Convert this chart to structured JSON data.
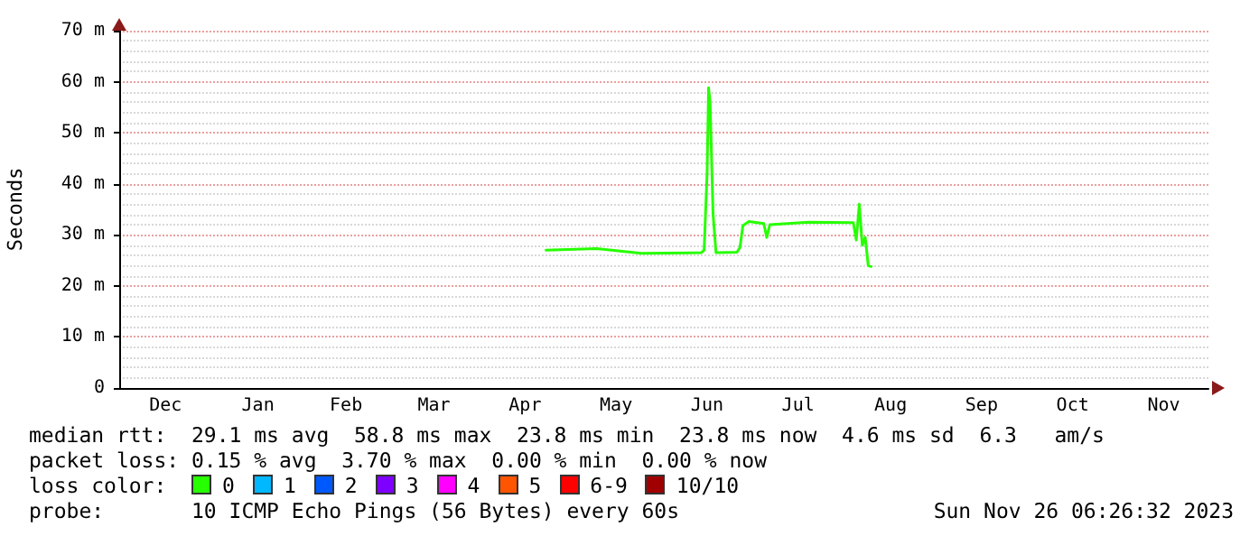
{
  "chart_data": {
    "type": "line",
    "ylabel": "Seconds",
    "legend_title": "loss color:",
    "legend": "bottom",
    "grid": "y",
    "marker": "none",
    "line_style": "solid",
    "xlim": [
      "2022-12-01",
      "2023-12-01"
    ],
    "xticks": [
      {
        "value": "2022-12-16T12:00",
        "label": "Dec"
      },
      {
        "value": "2023-01-16T12:00",
        "label": "Jan"
      },
      {
        "value": "2023-02-15",
        "label": "Feb"
      },
      {
        "value": "2023-03-16T12:00",
        "label": "Mar"
      },
      {
        "value": "2023-04-16",
        "label": "Apr"
      },
      {
        "value": "2023-05-16T12:00",
        "label": "May"
      },
      {
        "value": "2023-06-16",
        "label": "Jun"
      },
      {
        "value": "2023-07-16T12:00",
        "label": "Jul"
      },
      {
        "value": "2023-08-16T12:00",
        "label": "Aug"
      },
      {
        "value": "2023-09-16",
        "label": "Sep"
      },
      {
        "value": "2023-10-16T12:00",
        "label": "Oct"
      },
      {
        "value": "2023-11-16",
        "label": "Nov"
      }
    ],
    "ylim": [
      0,
      70
    ],
    "yticks": [
      0,
      {
        "value": 10,
        "label": "10 m"
      },
      {
        "value": 20,
        "label": "20 m"
      },
      {
        "value": 30,
        "label": "30 m"
      },
      {
        "value": 40,
        "label": "40 m"
      },
      {
        "value": 50,
        "label": "50 m"
      },
      {
        "value": 60,
        "label": "60 m"
      },
      {
        "value": 70,
        "label": "70 m"
      }
    ],
    "x": [
      "2023-04-23",
      "2023-05-10",
      "2023-05-25",
      "2023-06-14",
      "2023-06-15",
      "2023-06-16",
      "2023-06-16T12:00",
      "2023-06-17",
      "2023-06-18",
      "2023-06-19",
      "2023-06-26",
      "2023-06-27",
      "2023-06-28",
      "2023-06-30",
      "2023-07-05",
      "2023-07-06",
      "2023-07-07",
      "2023-07-20",
      "2023-08-04",
      "2023-08-05",
      "2023-08-06",
      "2023-08-07",
      "2023-08-08",
      "2023-08-09",
      "2023-08-10"
    ],
    "series": [
      {
        "name": "0",
        "color": "#26ff00",
        "values": [
          27.0,
          27.3,
          26.4,
          26.5,
          27.0,
          42,
          58.8,
          56,
          34,
          26.5,
          26.6,
          27.5,
          31.8,
          32.6,
          32.2,
          29.5,
          32.0,
          32.5,
          32.4,
          29,
          36,
          28,
          29.5,
          24,
          23.8
        ]
      },
      {
        "name": "1",
        "color": "#00b8ff",
        "values": [
          null,
          null,
          null,
          null,
          null,
          null,
          null,
          null,
          null,
          null,
          null,
          null,
          null,
          null,
          null,
          null,
          null,
          null,
          null,
          null,
          null,
          null,
          null,
          null,
          null
        ]
      },
      {
        "name": "2",
        "color": "#0059ff",
        "values": [
          null,
          null,
          null,
          null,
          null,
          null,
          null,
          null,
          null,
          null,
          null,
          null,
          null,
          null,
          null,
          null,
          null,
          null,
          null,
          null,
          null,
          null,
          null,
          null,
          null
        ]
      },
      {
        "name": "3",
        "color": "#7e00ff",
        "values": [
          null,
          null,
          null,
          null,
          null,
          null,
          null,
          null,
          null,
          null,
          null,
          null,
          null,
          null,
          null,
          null,
          null,
          null,
          null,
          null,
          null,
          null,
          null,
          null,
          null
        ]
      },
      {
        "name": "4",
        "color": "#ff00ff",
        "values": [
          null,
          null,
          null,
          null,
          null,
          null,
          null,
          null,
          null,
          null,
          null,
          null,
          null,
          null,
          null,
          null,
          null,
          null,
          null,
          null,
          null,
          null,
          null,
          null,
          null
        ]
      },
      {
        "name": "5",
        "color": "#ff5500",
        "values": [
          null,
          null,
          null,
          null,
          null,
          null,
          null,
          null,
          null,
          null,
          null,
          null,
          null,
          null,
          null,
          null,
          null,
          null,
          null,
          null,
          null,
          null,
          null,
          null,
          null
        ]
      },
      {
        "name": "6-9",
        "color": "#ff0000",
        "values": [
          null,
          null,
          null,
          null,
          null,
          null,
          null,
          null,
          null,
          null,
          null,
          null,
          null,
          null,
          null,
          null,
          null,
          null,
          null,
          null,
          null,
          null,
          null,
          null,
          null
        ]
      },
      {
        "name": "10/10",
        "color": "#a10000",
        "values": [
          null,
          null,
          null,
          null,
          null,
          null,
          null,
          null,
          null,
          null,
          null,
          null,
          null,
          null,
          null,
          null,
          null,
          null,
          null,
          null,
          null,
          null,
          null,
          null,
          null
        ]
      }
    ],
    "annotations": [
      "median rtt:  29.1 ms avg  58.8 ms max  23.8 ms min  23.8 ms now  4.6 ms sd  6.3   am/s",
      "packet loss: 0.15 % avg  3.70 % max  0.00 % min  0.00 % now",
      "probe:       10 ICMP Echo Pings (56 Bytes) every 60s",
      "Sun Nov 26 06:26:32 2023"
    ]
  }
}
